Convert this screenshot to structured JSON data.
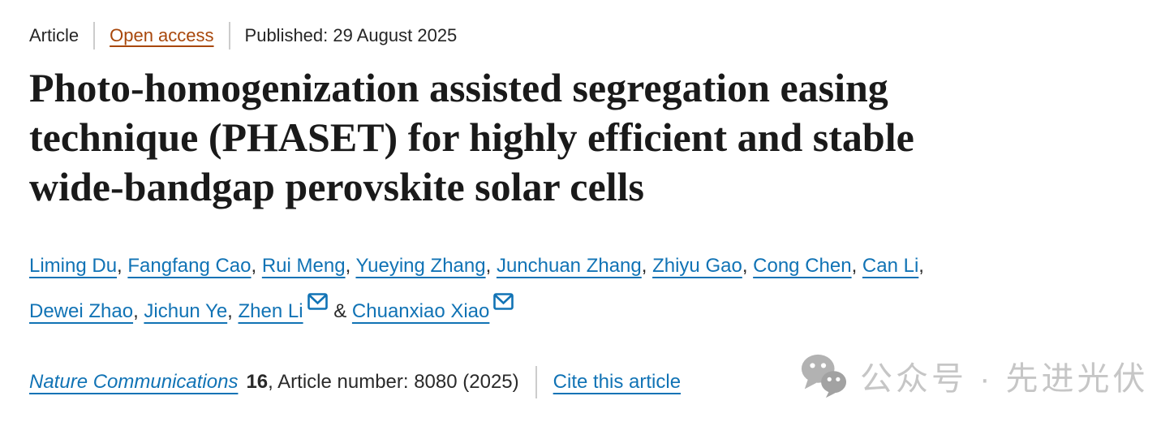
{
  "meta": {
    "type_label": "Article",
    "access_label": "Open access",
    "published_label": "Published: 29 August 2025"
  },
  "title": {
    "full": "Photo-homogenization assisted segregation easing technique (PHASET) for highly efficient and stable wide-bandgap perovskite solar cells",
    "lines": [
      "Photo-homogenization assisted segregation easing",
      "technique (PHASET) for highly efficient and stable",
      "wide-bandgap perovskite solar cells"
    ]
  },
  "authors": {
    "lines": [
      [
        {
          "name": "Liming Du",
          "sep": ", "
        },
        {
          "name": "Fangfang Cao",
          "sep": ", "
        },
        {
          "name": "Rui Meng",
          "sep": ", "
        },
        {
          "name": "Yueying Zhang",
          "sep": ", "
        },
        {
          "name": "Junchuan Zhang",
          "sep": ", "
        },
        {
          "name": "Zhiyu Gao",
          "sep": ", "
        },
        {
          "name": "Cong Chen",
          "sep": ", "
        },
        {
          "name": "Can Li",
          "sep": ","
        }
      ],
      [
        {
          "name": "Dewei Zhao",
          "sep": ", "
        },
        {
          "name": "Jichun Ye",
          "sep": ", "
        },
        {
          "name": "Zhen Li",
          "envelope": true,
          "sep": " & "
        },
        {
          "name": "Chuanxiao Xiao",
          "envelope": true,
          "sep": ""
        }
      ]
    ],
    "envelope_icon_name": "envelope-icon"
  },
  "journal": {
    "name": "Nature Communications",
    "volume": "16",
    "article_info": ", Article number: 8080 (2025)",
    "cite_label": "Cite this article"
  },
  "watermark": {
    "icon": "wechat-icon",
    "text": "公众号 · 先进光伏"
  },
  "colors": {
    "link_blue": "#1173b5",
    "open_access_rust": "#a8470b",
    "text_dark": "#222222",
    "divider_gray": "#cccccc",
    "watermark_gray": "#c6c6c6",
    "title_black": "#1a1a1a"
  }
}
